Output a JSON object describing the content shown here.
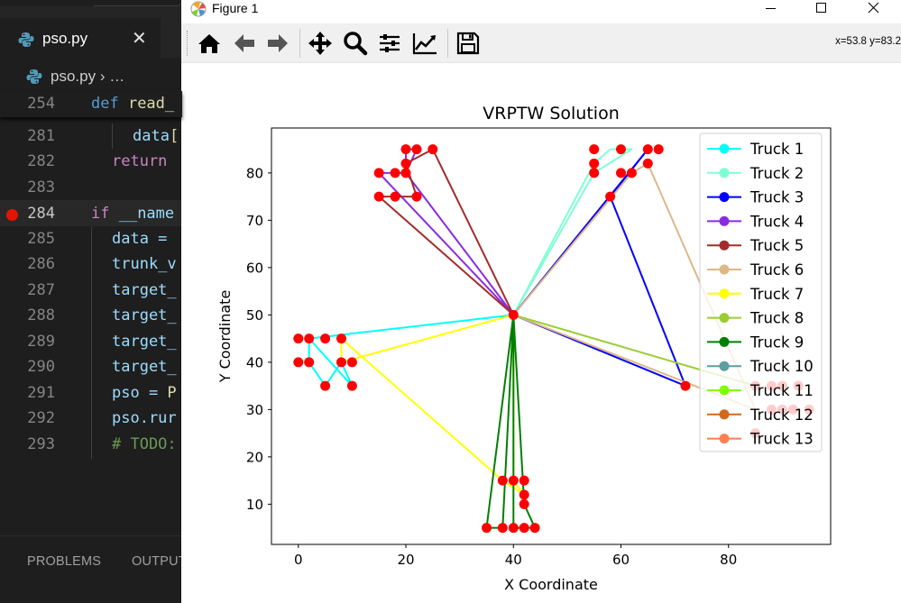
{
  "editor": {
    "tab": {
      "filename": "pso.py",
      "close": "✕"
    },
    "breadcrumb": {
      "file": "pso.py",
      "rest": "› …"
    },
    "lines": [
      {
        "num": "254",
        "parts": [
          [
            "kw",
            "def "
          ],
          [
            "fn",
            "read_"
          ]
        ]
      },
      {
        "num": "281",
        "parts": [
          [
            "",
            "data"
          ],
          [
            "fn",
            "["
          ]
        ]
      },
      {
        "num": "282",
        "parts": [
          [
            "kw2",
            "return "
          ]
        ]
      },
      {
        "num": "283",
        "parts": []
      },
      {
        "num": "284",
        "parts": [
          [
            "kw2",
            "if "
          ],
          [
            "",
            "__name"
          ]
        ]
      },
      {
        "num": "285",
        "parts": [
          [
            "",
            "data = "
          ]
        ]
      },
      {
        "num": "286",
        "parts": [
          [
            "",
            "trunk_v"
          ]
        ]
      },
      {
        "num": "287",
        "parts": [
          [
            "",
            "target_"
          ]
        ]
      },
      {
        "num": "288",
        "parts": [
          [
            "",
            "target_"
          ]
        ]
      },
      {
        "num": "289",
        "parts": [
          [
            "",
            "target_"
          ]
        ]
      },
      {
        "num": "290",
        "parts": [
          [
            "",
            "target_"
          ]
        ]
      },
      {
        "num": "291",
        "parts": [
          [
            "",
            "pso = "
          ],
          [
            "fn",
            "P"
          ]
        ]
      },
      {
        "num": "292",
        "parts": [
          [
            "",
            "pso.rur"
          ]
        ]
      },
      {
        "num": "293",
        "parts": [
          [
            "cm",
            "# TODO:"
          ]
        ]
      }
    ],
    "panel_tabs": [
      "PROBLEMS",
      "OUTPUT"
    ]
  },
  "window": {
    "title": "Figure 1",
    "coords_readout": "x=53.8 y=83.2",
    "toolbar_icons": [
      "home-icon",
      "back-arrow-icon",
      "forward-arrow-icon",
      "pan-icon",
      "zoom-icon",
      "configure-subplots-icon",
      "edit-axis-icon",
      "save-icon"
    ]
  },
  "chart_data": {
    "type": "line",
    "title": "VRPTW Solution",
    "xlabel": "X Coordinate",
    "ylabel": "Y Coordinate",
    "xlim": [
      -5,
      99
    ],
    "ylim": [
      1.5,
      89.5
    ],
    "xticks": [
      0,
      20,
      40,
      60,
      80
    ],
    "yticks": [
      10,
      20,
      30,
      40,
      50,
      60,
      70,
      80
    ],
    "grid": false,
    "legend": "top-right",
    "depot": [
      40,
      50
    ],
    "point_color": "#ff0000",
    "customers": [
      [
        15,
        80
      ],
      [
        18,
        80
      ],
      [
        20,
        80
      ],
      [
        20,
        82
      ],
      [
        20,
        85
      ],
      [
        22,
        85
      ],
      [
        25,
        85
      ],
      [
        15,
        75
      ],
      [
        18,
        75
      ],
      [
        22,
        75
      ],
      [
        55,
        85
      ],
      [
        60,
        85
      ],
      [
        55,
        82
      ],
      [
        55,
        80
      ],
      [
        60,
        80
      ],
      [
        62,
        80
      ],
      [
        58,
        75
      ],
      [
        65,
        85
      ],
      [
        67,
        85
      ],
      [
        65,
        82
      ],
      [
        0,
        45
      ],
      [
        2,
        45
      ],
      [
        5,
        45
      ],
      [
        8,
        45
      ],
      [
        0,
        40
      ],
      [
        2,
        40
      ],
      [
        8,
        40
      ],
      [
        10,
        40
      ],
      [
        5,
        35
      ],
      [
        10,
        35
      ],
      [
        38,
        15
      ],
      [
        40,
        15
      ],
      [
        42,
        15
      ],
      [
        42,
        12
      ],
      [
        42,
        10
      ],
      [
        35,
        5
      ],
      [
        38,
        5
      ],
      [
        40,
        5
      ],
      [
        42,
        5
      ],
      [
        44,
        5
      ],
      [
        72,
        35
      ],
      [
        85,
        35
      ],
      [
        88,
        35
      ],
      [
        90,
        35
      ],
      [
        93,
        35
      ],
      [
        85,
        25
      ],
      [
        88,
        30
      ],
      [
        90,
        30
      ],
      [
        92,
        30
      ],
      [
        95,
        30
      ]
    ],
    "series": [
      {
        "name": "Truck 1",
        "color": "#00ffff",
        "route": [
          [
            40,
            50
          ],
          [
            2,
            45
          ],
          [
            2,
            40
          ],
          [
            5,
            35
          ],
          [
            8,
            40
          ],
          [
            10,
            35
          ],
          [
            2,
            45
          ],
          [
            40,
            50
          ]
        ]
      },
      {
        "name": "Truck 2",
        "color": "#7fffd4",
        "route": [
          [
            40,
            50
          ],
          [
            55,
            82
          ],
          [
            58,
            85
          ],
          [
            62,
            85
          ],
          [
            55,
            80
          ],
          [
            40,
            50
          ]
        ]
      },
      {
        "name": "Truck 3",
        "color": "#0000ff",
        "route": [
          [
            40,
            50
          ],
          [
            65,
            85
          ],
          [
            58,
            75
          ],
          [
            72,
            35
          ],
          [
            40,
            50
          ]
        ]
      },
      {
        "name": "Truck 4",
        "color": "#8a2be2",
        "route": [
          [
            40,
            50
          ],
          [
            15,
            80
          ],
          [
            20,
            80
          ],
          [
            20,
            85
          ],
          [
            22,
            85
          ],
          [
            20,
            80
          ],
          [
            40,
            50
          ]
        ]
      },
      {
        "name": "Truck 5",
        "color": "#a52a2a",
        "route": [
          [
            40,
            50
          ],
          [
            15,
            75
          ],
          [
            18,
            75
          ],
          [
            22,
            75
          ],
          [
            20,
            82
          ],
          [
            25,
            85
          ],
          [
            40,
            50
          ]
        ]
      },
      {
        "name": "Truck 6",
        "color": "#deb887",
        "route": [
          [
            40,
            50
          ],
          [
            62,
            80
          ],
          [
            65,
            82
          ],
          [
            85,
            30
          ],
          [
            40,
            50
          ]
        ]
      },
      {
        "name": "Truck 7",
        "color": "#ffff00",
        "route": [
          [
            40,
            50
          ],
          [
            8,
            40
          ],
          [
            8,
            45
          ],
          [
            38,
            15
          ],
          [
            42,
            12
          ],
          [
            40,
            15
          ],
          [
            40,
            50
          ]
        ]
      },
      {
        "name": "Truck 8",
        "color": "#9acd32",
        "route": [
          [
            40,
            50
          ],
          [
            85,
            35
          ],
          [
            40,
            50
          ]
        ]
      },
      {
        "name": "Truck 9",
        "color": "#008000",
        "route": [
          [
            40,
            50
          ],
          [
            38,
            5
          ],
          [
            35,
            5
          ],
          [
            40,
            50
          ],
          [
            42,
            10
          ],
          [
            44,
            5
          ],
          [
            40,
            5
          ],
          [
            40,
            50
          ]
        ]
      },
      {
        "name": "Truck 10",
        "color": "#5f9ea0",
        "route": []
      },
      {
        "name": "Truck 11",
        "color": "#7fff00",
        "route": []
      },
      {
        "name": "Truck 12",
        "color": "#d2691e",
        "route": []
      },
      {
        "name": "Truck 13",
        "color": "#ff7f50",
        "route": []
      }
    ]
  }
}
